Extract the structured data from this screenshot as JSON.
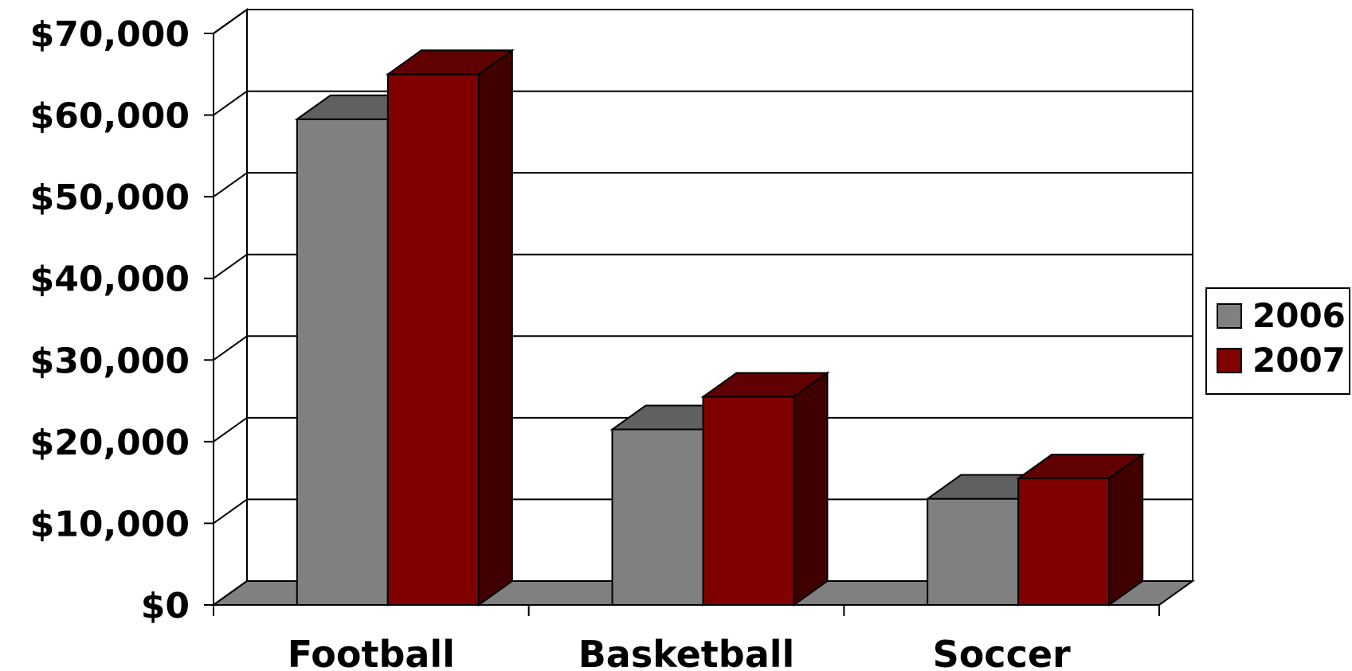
{
  "chart_data": {
    "type": "bar",
    "categories": [
      "Football",
      "Basketball",
      "Soccer"
    ],
    "series": [
      {
        "name": "2006",
        "values": [
          59500,
          21500,
          13000
        ],
        "color": "#808080",
        "top_color": "#606060",
        "side_color": "#505050"
      },
      {
        "name": "2007",
        "values": [
          65000,
          25500,
          15500
        ],
        "color": "#800000",
        "top_color": "#600000",
        "side_color": "#400000"
      }
    ],
    "ylim": [
      0,
      70000
    ],
    "yticks": [
      0,
      10000,
      20000,
      30000,
      40000,
      50000,
      60000,
      70000
    ],
    "ytick_labels": [
      "$0",
      "$10,000",
      "$20,000",
      "$30,000",
      "$40,000",
      "$50,000",
      "$60,000",
      "$70,000"
    ],
    "grid": true,
    "legend": "right",
    "title": "",
    "xlabel": "",
    "ylabel": "",
    "floor_color": "#808080",
    "background": "#ffffff"
  }
}
